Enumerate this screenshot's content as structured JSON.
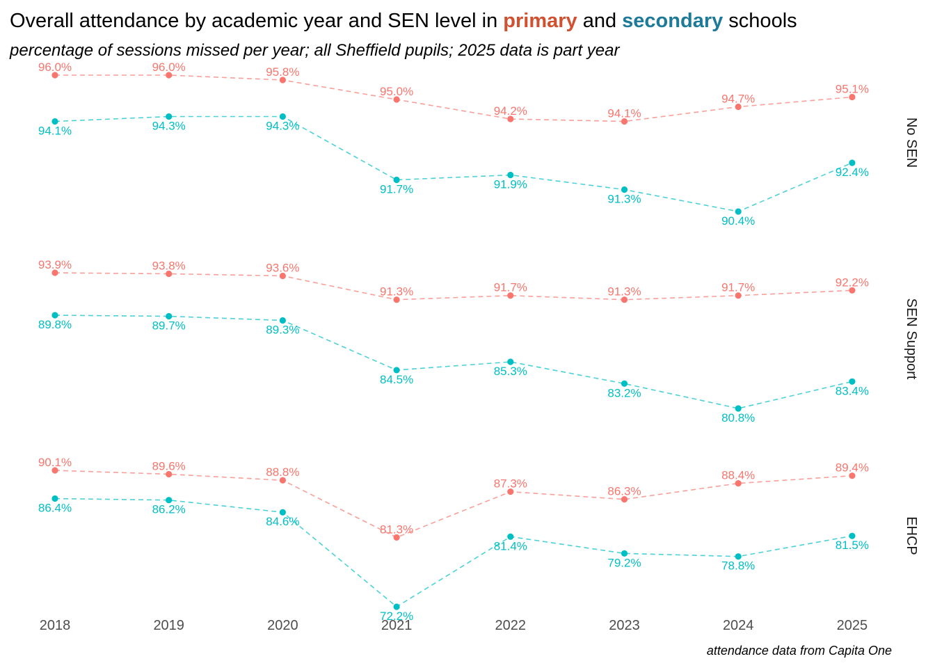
{
  "chart_data": {
    "type": "line",
    "title": {
      "prefix": "Overall attendance by academic year and SEN level in ",
      "primary": "primary",
      "mid": " and ",
      "secondary": "secondary",
      "suffix": " schools"
    },
    "subtitle": "percentage of sessions missed per year; all Sheffield pupils; 2025 data is part year",
    "caption": "attendance data from Capita One",
    "x": [
      "2018",
      "2019",
      "2020",
      "2021",
      "2022",
      "2023",
      "2024",
      "2025"
    ],
    "colors": {
      "primary_title": "#d1502f",
      "secondary_title": "#1d7a99",
      "primary": "#f8766d",
      "secondary": "#00bfc4"
    },
    "grid": false,
    "panels": [
      {
        "label": "No SEN",
        "series": [
          {
            "name": "primary",
            "values": [
              96.0,
              96.0,
              95.8,
              95.0,
              94.2,
              94.1,
              94.7,
              95.1
            ],
            "labels": [
              "96.0%",
              "96.0%",
              "95.8%",
              "95.0%",
              "94.2%",
              "94.1%",
              "94.7%",
              "95.1%"
            ]
          },
          {
            "name": "secondary",
            "values": [
              94.1,
              94.3,
              94.3,
              91.7,
              91.9,
              91.3,
              90.4,
              92.4
            ],
            "labels": [
              "94.1%",
              "94.3%",
              "94.3%",
              "91.7%",
              "91.9%",
              "91.3%",
              "90.4%",
              "92.4%"
            ]
          }
        ]
      },
      {
        "label": "SEN Support",
        "series": [
          {
            "name": "primary",
            "values": [
              93.9,
              93.8,
              93.6,
              91.3,
              91.7,
              91.3,
              91.7,
              92.2
            ],
            "labels": [
              "93.9%",
              "93.8%",
              "93.6%",
              "91.3%",
              "91.7%",
              "91.3%",
              "91.7%",
              "92.2%"
            ]
          },
          {
            "name": "secondary",
            "values": [
              89.8,
              89.7,
              89.3,
              84.5,
              85.3,
              83.2,
              80.8,
              83.4
            ],
            "labels": [
              "89.8%",
              "89.7%",
              "89.3%",
              "84.5%",
              "85.3%",
              "83.2%",
              "80.8%",
              "83.4%"
            ]
          }
        ]
      },
      {
        "label": "EHCP",
        "series": [
          {
            "name": "primary",
            "values": [
              90.1,
              89.6,
              88.8,
              81.3,
              87.3,
              86.3,
              88.4,
              89.4
            ],
            "labels": [
              "90.1%",
              "89.6%",
              "88.8%",
              "81.3%",
              "87.3%",
              "86.3%",
              "88.4%",
              "89.4%"
            ]
          },
          {
            "name": "secondary",
            "values": [
              86.4,
              86.2,
              84.6,
              72.2,
              81.4,
              79.2,
              78.8,
              81.5
            ],
            "labels": [
              "86.4%",
              "86.2%",
              "84.6%",
              "72.2%",
              "81.4%",
              "79.2%",
              "78.8%",
              "81.5%"
            ]
          }
        ]
      }
    ]
  }
}
